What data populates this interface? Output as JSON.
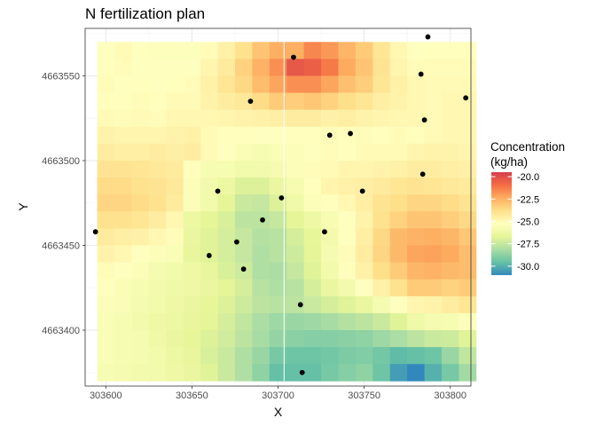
{
  "chart_data": {
    "type": "heatmap",
    "title": "N fertilization plan",
    "xlabel": "X",
    "ylabel": "Y",
    "xlim": [
      303588,
      303812
    ],
    "ylim": [
      4663367,
      4663578
    ],
    "x_ticks": [
      303600,
      303650,
      303700,
      303750,
      303800
    ],
    "y_ticks": [
      4663400,
      4663450,
      4663500,
      4663550
    ],
    "x_tick_labels": [
      "303600",
      "303650",
      "303700",
      "303750",
      "303800"
    ],
    "y_tick_labels": [
      "4663400",
      "4663450",
      "4663500",
      "4663550"
    ],
    "grid": true,
    "legend": {
      "title_line1": "Concentration",
      "title_line2": "(kg/ha)",
      "placement": "right",
      "ticks": [
        -20.0,
        -22.5,
        -25.0,
        -27.5,
        -30.0
      ],
      "tick_labels": [
        "-20.0",
        "-22.5",
        "-25.0",
        "-27.5",
        "-30.0"
      ],
      "min": -31.0,
      "max": -19.5,
      "palette": [
        "#3288bd",
        "#66c2a5",
        "#abdda4",
        "#e6f598",
        "#ffffbf",
        "#fee08b",
        "#fdae61",
        "#f46d43",
        "#d53e4f"
      ]
    },
    "raster": {
      "x_start": 303595,
      "y_start": 4663370,
      "cell_size": 10,
      "ncol": 22,
      "nrow": 20,
      "ridge_gap_x": 303703.5,
      "values": [
        [
          -25.3,
          -25.0,
          -25.3,
          -25.4,
          -25.4,
          -25.4,
          -25.1,
          -24.6,
          -23.9,
          -23.0,
          -22.4,
          -22.4,
          -21.5,
          -21.9,
          -22.6,
          -23.2,
          -24.1,
          -24.9,
          -25.3,
          -25.2,
          -25.2,
          -25.2
        ],
        [
          -25.3,
          -25.1,
          -25.3,
          -25.3,
          -25.3,
          -25.3,
          -24.8,
          -24.3,
          -23.4,
          -22.5,
          -21.7,
          -20.3,
          -20.5,
          -21.2,
          -22.3,
          -23.0,
          -24.0,
          -24.8,
          -25.1,
          -25.1,
          -25.1,
          -25.1
        ],
        [
          -25.1,
          -25.3,
          -25.2,
          -25.3,
          -25.2,
          -25.1,
          -24.6,
          -24.1,
          -23.6,
          -22.8,
          -22.2,
          -21.7,
          -21.7,
          -22.2,
          -22.9,
          -23.3,
          -24.1,
          -24.6,
          -24.9,
          -25.0,
          -25.0,
          -25.0
        ],
        [
          -25.2,
          -25.2,
          -25.1,
          -25.2,
          -25.0,
          -25.0,
          -24.7,
          -24.4,
          -24.2,
          -23.7,
          -23.2,
          -23.3,
          -23.1,
          -23.4,
          -23.8,
          -24.1,
          -24.5,
          -24.7,
          -24.9,
          -25.0,
          -24.9,
          -24.9
        ],
        [
          -25.0,
          -25.1,
          -25.0,
          -25.1,
          -24.9,
          -24.9,
          -24.9,
          -24.8,
          -24.7,
          -24.6,
          -24.5,
          -24.4,
          -24.4,
          -24.6,
          -24.5,
          -24.7,
          -24.8,
          -24.9,
          -24.9,
          -25.0,
          -24.9,
          -24.9
        ],
        [
          -24.7,
          -24.8,
          -24.8,
          -24.8,
          -24.7,
          -24.6,
          -25.0,
          -25.2,
          -25.2,
          -25.3,
          -25.3,
          -25.2,
          -25.2,
          -25.1,
          -25.2,
          -25.1,
          -25.2,
          -25.1,
          -25.2,
          -25.0,
          -24.9,
          -24.9
        ],
        [
          -24.4,
          -24.5,
          -24.5,
          -24.4,
          -24.5,
          -24.4,
          -25.0,
          -25.3,
          -25.6,
          -25.7,
          -25.6,
          -25.5,
          -25.3,
          -25.1,
          -25.2,
          -25.0,
          -25.0,
          -25.0,
          -24.8,
          -24.7,
          -24.7,
          -24.8
        ],
        [
          -24.0,
          -24.0,
          -24.1,
          -24.2,
          -24.3,
          -25.2,
          -25.7,
          -25.7,
          -26.0,
          -26.0,
          -25.8,
          -25.5,
          -25.1,
          -25.0,
          -24.8,
          -24.8,
          -24.7,
          -24.6,
          -24.4,
          -24.4,
          -24.5,
          -24.6
        ],
        [
          -23.7,
          -23.7,
          -23.9,
          -24.0,
          -24.2,
          -25.5,
          -25.9,
          -26.3,
          -26.9,
          -26.9,
          -26.4,
          -25.8,
          -25.2,
          -24.8,
          -24.6,
          -24.5,
          -24.3,
          -24.1,
          -24.0,
          -24.1,
          -24.2,
          -24.3
        ],
        [
          -23.5,
          -23.5,
          -23.7,
          -23.9,
          -24.3,
          -25.5,
          -26.0,
          -26.7,
          -27.4,
          -27.5,
          -26.9,
          -26.1,
          -25.5,
          -25.2,
          -24.9,
          -24.5,
          -24.0,
          -23.8,
          -23.5,
          -23.5,
          -23.7,
          -24.0
        ],
        [
          -23.9,
          -23.9,
          -24.1,
          -24.4,
          -24.9,
          -26.3,
          -26.7,
          -27.0,
          -27.7,
          -27.7,
          -27.5,
          -26.7,
          -26.2,
          -25.7,
          -25.3,
          -24.7,
          -23.9,
          -23.4,
          -23.0,
          -23.0,
          -23.3,
          -23.6
        ],
        [
          -24.3,
          -24.5,
          -24.6,
          -24.9,
          -25.1,
          -26.4,
          -26.8,
          -27.1,
          -27.5,
          -27.9,
          -27.8,
          -27.1,
          -26.6,
          -25.9,
          -25.3,
          -24.5,
          -23.6,
          -22.7,
          -22.5,
          -22.4,
          -22.6,
          -23.1
        ],
        [
          -24.7,
          -24.9,
          -25.3,
          -25.5,
          -25.6,
          -26.5,
          -26.8,
          -27.1,
          -27.5,
          -28.0,
          -27.8,
          -27.3,
          -26.7,
          -25.8,
          -25.1,
          -24.4,
          -23.5,
          -22.7,
          -22.2,
          -22.1,
          -22.3,
          -22.8
        ],
        [
          -25.1,
          -25.3,
          -25.5,
          -25.8,
          -26.0,
          -26.2,
          -26.5,
          -27.0,
          -27.3,
          -28.0,
          -28.1,
          -27.5,
          -26.8,
          -26.0,
          -25.2,
          -24.6,
          -23.8,
          -23.2,
          -22.6,
          -22.5,
          -22.7,
          -22.8
        ],
        [
          -25.3,
          -25.6,
          -25.7,
          -25.9,
          -26.1,
          -26.2,
          -26.4,
          -26.7,
          -27.1,
          -27.8,
          -28.0,
          -27.8,
          -27.1,
          -26.4,
          -25.9,
          -25.3,
          -24.6,
          -23.9,
          -23.2,
          -23.2,
          -23.4,
          -23.2
        ],
        [
          -25.5,
          -25.6,
          -25.8,
          -26.0,
          -26.2,
          -26.4,
          -26.6,
          -26.9,
          -27.3,
          -27.7,
          -27.8,
          -27.7,
          -27.4,
          -27.1,
          -26.8,
          -26.4,
          -25.8,
          -25.3,
          -24.8,
          -24.7,
          -24.4,
          -24.1
        ],
        [
          -25.6,
          -25.7,
          -25.9,
          -26.2,
          -26.3,
          -26.5,
          -26.7,
          -27.1,
          -27.6,
          -28.1,
          -28.4,
          -28.5,
          -28.4,
          -28.2,
          -27.9,
          -27.7,
          -27.4,
          -26.8,
          -26.1,
          -25.8,
          -25.7,
          -25.4
        ],
        [
          -25.6,
          -25.7,
          -25.8,
          -26.1,
          -26.4,
          -26.6,
          -26.9,
          -27.2,
          -27.7,
          -28.2,
          -28.6,
          -28.8,
          -28.9,
          -28.9,
          -28.8,
          -28.7,
          -28.4,
          -28.1,
          -27.7,
          -27.4,
          -27.3,
          -26.8
        ],
        [
          -25.6,
          -25.7,
          -25.8,
          -26.0,
          -26.3,
          -26.5,
          -27.0,
          -27.4,
          -28.0,
          -28.5,
          -29.2,
          -29.4,
          -29.4,
          -29.3,
          -29.1,
          -29.0,
          -29.3,
          -29.7,
          -29.6,
          -29.4,
          -28.5,
          -27.6
        ],
        [
          -25.7,
          -25.8,
          -25.9,
          -26.0,
          -26.2,
          -26.4,
          -26.8,
          -27.4,
          -28.0,
          -28.7,
          -29.6,
          -29.6,
          -29.6,
          -29.2,
          -28.9,
          -28.7,
          -29.4,
          -30.5,
          -31.0,
          -30.0,
          -29.2,
          -28.3
        ]
      ]
    },
    "points": [
      {
        "x": 303787,
        "y": 4663573
      },
      {
        "x": 303709,
        "y": 4663561
      },
      {
        "x": 303783,
        "y": 4663551
      },
      {
        "x": 303809,
        "y": 4663537
      },
      {
        "x": 303684,
        "y": 4663535
      },
      {
        "x": 303785,
        "y": 4663524
      },
      {
        "x": 303742,
        "y": 4663516
      },
      {
        "x": 303730,
        "y": 4663515
      },
      {
        "x": 303784,
        "y": 4663492
      },
      {
        "x": 303665,
        "y": 4663482
      },
      {
        "x": 303749,
        "y": 4663482
      },
      {
        "x": 303702,
        "y": 4663478
      },
      {
        "x": 303691,
        "y": 4663465
      },
      {
        "x": 303727,
        "y": 4663458
      },
      {
        "x": 303594,
        "y": 4663458
      },
      {
        "x": 303676,
        "y": 4663452
      },
      {
        "x": 303660,
        "y": 4663444
      },
      {
        "x": 303680,
        "y": 4663436
      },
      {
        "x": 303713,
        "y": 4663415
      },
      {
        "x": 303714,
        "y": 4663375
      }
    ]
  }
}
